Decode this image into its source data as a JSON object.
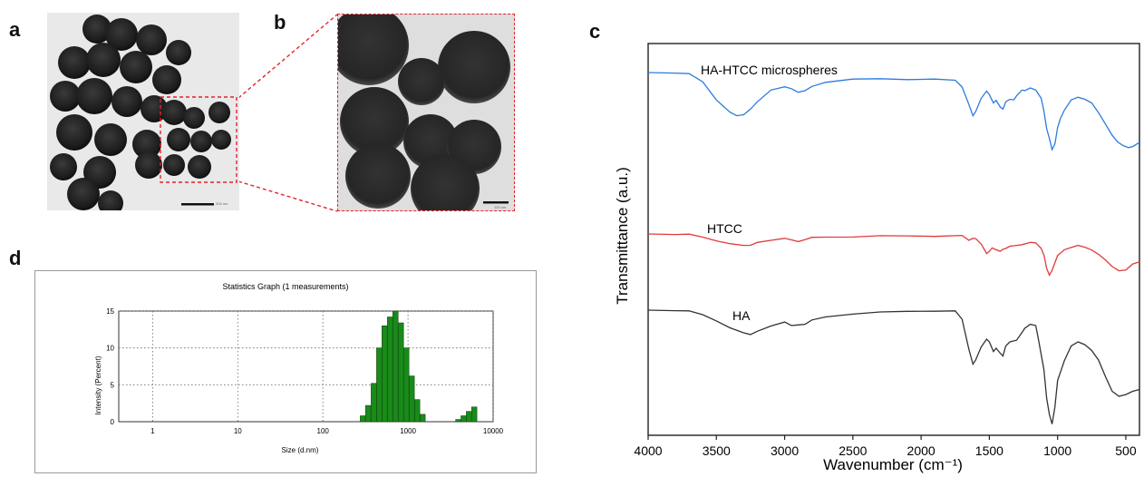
{
  "panels": {
    "a": {
      "letter": "a",
      "scale_text": "200 nm"
    },
    "b": {
      "letter": "b",
      "scale_text": "100 nm"
    },
    "c": {
      "letter": "c"
    },
    "d": {
      "letter": "d"
    }
  },
  "colors": {
    "ha_htcc": "#2b7be0",
    "htcc": "#e23a3a",
    "ha": "#333333",
    "histogram": "#1a8a1a",
    "zoom_box": "#e3242b"
  },
  "chart_data": [
    {
      "type": "line",
      "xlabel": "Wavenumber (cm⁻¹)",
      "ylabel": "Transmittance (a.u.)",
      "xlim": [
        4000,
        400
      ],
      "x_ticks": [
        4000,
        3500,
        3000,
        2500,
        2000,
        1500,
        1000,
        500
      ],
      "y_ticks_shown": false,
      "series": [
        {
          "name": "HA-HTCC microspheres",
          "color": "#2b7be0",
          "x": [
            4000,
            3800,
            3700,
            3600,
            3500,
            3400,
            3350,
            3300,
            3250,
            3200,
            3100,
            3000,
            2950,
            2900,
            2850,
            2800,
            2700,
            2500,
            2300,
            2100,
            1900,
            1750,
            1700,
            1650,
            1620,
            1600,
            1560,
            1520,
            1500,
            1470,
            1450,
            1420,
            1400,
            1380,
            1350,
            1320,
            1300,
            1260,
            1240,
            1200,
            1160,
            1120,
            1100,
            1080,
            1060,
            1040,
            1020,
            1000,
            980,
            950,
            900,
            850,
            800,
            750,
            700,
            650,
            600,
            560,
            520,
            480,
            450,
            400
          ],
          "y": [
            0.0,
            0.0,
            0.02,
            0.12,
            0.35,
            0.52,
            0.56,
            0.54,
            0.48,
            0.38,
            0.22,
            0.19,
            0.21,
            0.25,
            0.24,
            0.18,
            0.12,
            0.09,
            0.08,
            0.085,
            0.09,
            0.1,
            0.18,
            0.42,
            0.56,
            0.5,
            0.34,
            0.24,
            0.28,
            0.4,
            0.36,
            0.44,
            0.48,
            0.38,
            0.34,
            0.36,
            0.3,
            0.22,
            0.24,
            0.2,
            0.22,
            0.34,
            0.5,
            0.72,
            0.86,
            1.0,
            0.92,
            0.72,
            0.6,
            0.48,
            0.36,
            0.32,
            0.34,
            0.4,
            0.52,
            0.66,
            0.82,
            0.9,
            0.94,
            0.98,
            0.96,
            0.9
          ]
        },
        {
          "name": "HTCC",
          "color": "#e23a3a",
          "x": [
            4000,
            3800,
            3700,
            3600,
            3500,
            3400,
            3300,
            3250,
            3200,
            3100,
            3000,
            2950,
            2900,
            2850,
            2800,
            2700,
            2500,
            2300,
            2100,
            1900,
            1700,
            1650,
            1620,
            1600,
            1560,
            1520,
            1500,
            1480,
            1450,
            1420,
            1400,
            1380,
            1350,
            1300,
            1260,
            1200,
            1160,
            1120,
            1100,
            1080,
            1060,
            1040,
            1000,
            950,
            900,
            850,
            800,
            750,
            700,
            650,
            600,
            550,
            500,
            450,
            400
          ],
          "y": [
            0.0,
            0.0,
            0.01,
            0.05,
            0.1,
            0.16,
            0.18,
            0.17,
            0.14,
            0.1,
            0.06,
            0.1,
            0.12,
            0.08,
            0.06,
            0.05,
            0.04,
            0.035,
            0.03,
            0.03,
            0.03,
            0.1,
            0.06,
            0.08,
            0.16,
            0.3,
            0.28,
            0.22,
            0.24,
            0.28,
            0.24,
            0.22,
            0.2,
            0.18,
            0.16,
            0.14,
            0.14,
            0.22,
            0.34,
            0.54,
            0.64,
            0.58,
            0.34,
            0.24,
            0.22,
            0.18,
            0.2,
            0.26,
            0.32,
            0.4,
            0.52,
            0.58,
            0.56,
            0.48,
            0.44
          ]
        },
        {
          "name": "HA",
          "color": "#333333",
          "x": [
            4000,
            3800,
            3700,
            3600,
            3500,
            3400,
            3300,
            3250,
            3200,
            3100,
            3000,
            2950,
            2900,
            2850,
            2800,
            2700,
            2500,
            2300,
            2100,
            1900,
            1750,
            1700,
            1650,
            1620,
            1600,
            1560,
            1520,
            1500,
            1470,
            1450,
            1420,
            1400,
            1380,
            1350,
            1300,
            1260,
            1240,
            1200,
            1160,
            1140,
            1100,
            1080,
            1060,
            1040,
            1020,
            1000,
            950,
            900,
            850,
            800,
            750,
            700,
            650,
            600,
            550,
            500,
            450,
            400
          ],
          "y": [
            0.0,
            0.0,
            0.01,
            0.04,
            0.09,
            0.16,
            0.2,
            0.21,
            0.19,
            0.14,
            0.1,
            0.14,
            0.13,
            0.12,
            0.09,
            0.06,
            0.03,
            0.02,
            0.01,
            0.005,
            0.01,
            0.08,
            0.34,
            0.48,
            0.44,
            0.32,
            0.26,
            0.28,
            0.36,
            0.34,
            0.38,
            0.4,
            0.32,
            0.28,
            0.26,
            0.2,
            0.16,
            0.12,
            0.14,
            0.26,
            0.52,
            0.78,
            0.92,
            1.0,
            0.86,
            0.62,
            0.44,
            0.32,
            0.28,
            0.3,
            0.36,
            0.44,
            0.58,
            0.72,
            0.76,
            0.74,
            0.72,
            0.7
          ]
        }
      ],
      "curve_labels": [
        "HA-HTCC microspheres",
        "HTCC",
        "HA"
      ]
    },
    {
      "type": "bar",
      "title": "Statistics Graph (1 measurements)",
      "xlabel": "Size (d.nm)",
      "ylabel": "Intensity (Percent)",
      "x_scale": "log",
      "xlim": [
        0.4,
        10000
      ],
      "ylim": [
        0,
        15
      ],
      "x_ticks": [
        "1",
        "10",
        "100",
        "1000",
        "10000"
      ],
      "y_ticks": [
        "0",
        "5",
        "10",
        "15"
      ],
      "grid": true,
      "bins_center": [
        295,
        340,
        396,
        459,
        531,
        615,
        712,
        825,
        955,
        1106,
        1281,
        1484,
        3900,
        4500,
        5200,
        6000
      ],
      "values": [
        0.8,
        2.2,
        5.2,
        10.0,
        13.0,
        14.2,
        15.0,
        13.4,
        10.0,
        6.2,
        3.0,
        1.0,
        0.3,
        0.8,
        1.4,
        2.0
      ]
    }
  ]
}
